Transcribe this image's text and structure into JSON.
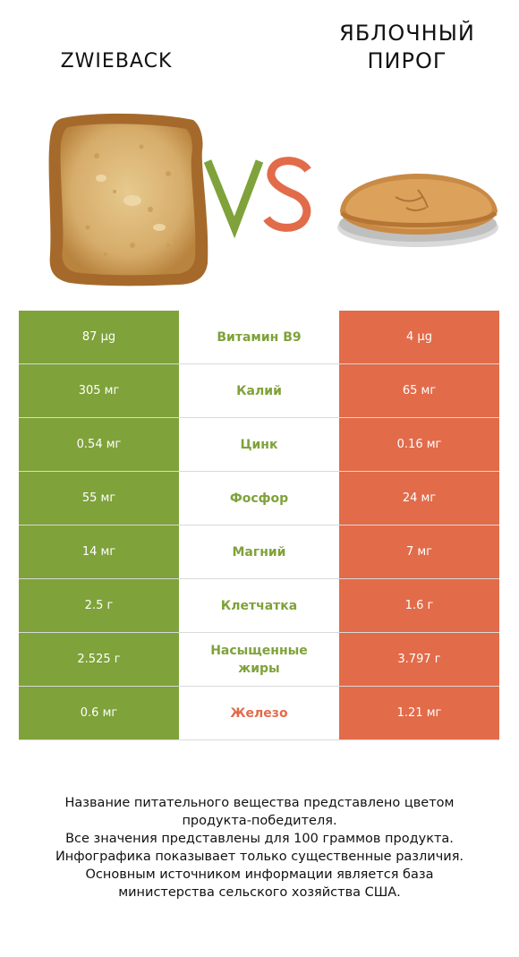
{
  "header": {
    "left_title": "ZWIEBACK",
    "right_title_line1": "ЯБЛОЧНЫЙ",
    "right_title_line2": "ПИРОГ",
    "vs_text": "VS"
  },
  "colors": {
    "left_accent": "#7fa23a",
    "right_accent": "#e26b4a",
    "vs_v": "#7fa23a",
    "vs_s": "#e26b4a"
  },
  "rows": [
    {
      "left": "87 µg",
      "name": "Витамин B9",
      "right": "4 µg",
      "winner": "left"
    },
    {
      "left": "305 мг",
      "name": "Калий",
      "right": "65 мг",
      "winner": "left"
    },
    {
      "left": "0.54 мг",
      "name": "Цинк",
      "right": "0.16 мг",
      "winner": "left"
    },
    {
      "left": "55 мг",
      "name": "Фосфор",
      "right": "24 мг",
      "winner": "left"
    },
    {
      "left": "14 мг",
      "name": "Магний",
      "right": "7 мг",
      "winner": "left"
    },
    {
      "left": "2.5 г",
      "name": "Клетчатка",
      "right": "1.6 г",
      "winner": "left"
    },
    {
      "left": "2.525 г",
      "name": "Насыщенные жиры",
      "right": "3.797 г",
      "winner": "left"
    },
    {
      "left": "0.6 мг",
      "name": "Железо",
      "right": "1.21 мг",
      "winner": "right"
    }
  ],
  "notes": [
    "Название питательного вещества представлено цветом",
    "продукта-победителя.",
    "Все значения представлены для 100 граммов продукта.",
    "Инфографика показывает только существенные различия.",
    "Основным источником информации является база",
    "министерства сельского хозяйства США."
  ]
}
